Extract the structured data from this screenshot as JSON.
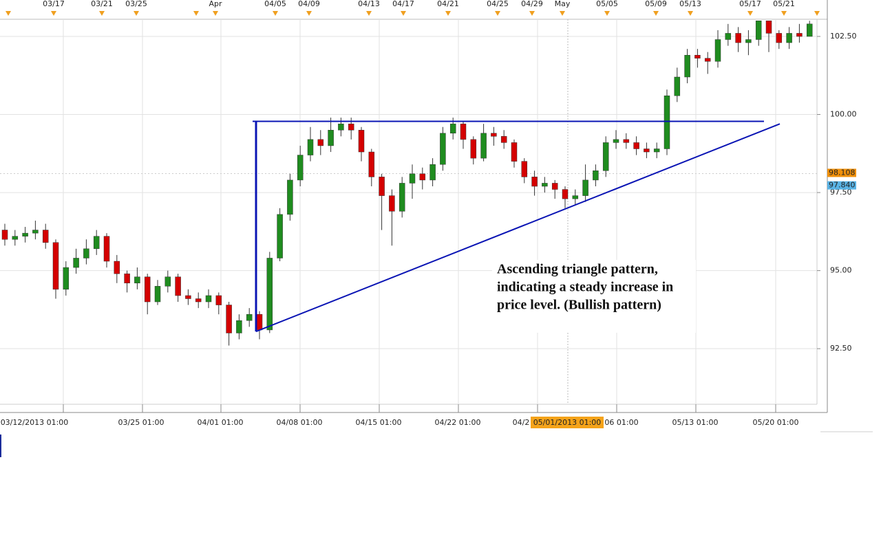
{
  "chart_data": {
    "type": "candlestick",
    "open": [
      96.3,
      96.0,
      96.1,
      96.2,
      96.3,
      95.9,
      94.4,
      95.1,
      95.4,
      95.7,
      96.1,
      95.3,
      94.9,
      94.6,
      94.8,
      94.0,
      94.5,
      94.8,
      94.2,
      94.1,
      94.0,
      94.2,
      93.9,
      93.0,
      93.4,
      93.6,
      93.1,
      95.4,
      96.8,
      97.9,
      98.7,
      99.2,
      99.0,
      99.5,
      99.7,
      99.5,
      98.8,
      98.0,
      97.4,
      96.9,
      97.8,
      98.1,
      97.9,
      98.4,
      99.4,
      99.7,
      99.2,
      98.6,
      99.4,
      99.3,
      99.1,
      98.5,
      98.0,
      97.7,
      97.8,
      97.6,
      97.3,
      97.4,
      97.9,
      98.2,
      99.1,
      99.2,
      99.1,
      98.9,
      98.8,
      98.9,
      100.6,
      101.2,
      101.9,
      101.8,
      101.7,
      102.4,
      102.6,
      102.3,
      102.4,
      103.0,
      102.6,
      102.3,
      102.6,
      102.5
    ],
    "high": [
      96.5,
      96.3,
      96.4,
      96.6,
      96.5,
      96.0,
      95.3,
      95.7,
      96.0,
      96.3,
      96.2,
      95.5,
      95.0,
      95.1,
      94.9,
      94.7,
      95.0,
      94.9,
      94.4,
      94.3,
      94.4,
      94.3,
      94.0,
      93.6,
      93.8,
      93.7,
      95.6,
      97.0,
      98.1,
      99.0,
      99.6,
      99.5,
      99.9,
      99.9,
      99.9,
      99.6,
      98.9,
      98.1,
      97.6,
      98.0,
      98.4,
      98.3,
      98.6,
      99.6,
      99.9,
      99.8,
      99.3,
      99.7,
      99.6,
      99.5,
      99.2,
      98.6,
      98.2,
      98.0,
      97.9,
      97.7,
      97.6,
      98.4,
      98.4,
      99.3,
      99.5,
      99.4,
      99.3,
      99.1,
      99.1,
      100.8,
      101.5,
      102.1,
      102.1,
      102.0,
      102.7,
      102.9,
      102.8,
      102.7,
      103.0,
      103.0,
      102.7,
      102.8,
      102.9,
      103.0
    ],
    "low": [
      95.8,
      95.8,
      95.9,
      96.0,
      95.7,
      94.1,
      94.2,
      94.9,
      95.2,
      95.5,
      95.1,
      94.6,
      94.3,
      94.4,
      93.6,
      93.9,
      94.3,
      94.0,
      93.9,
      93.8,
      93.8,
      93.6,
      92.6,
      92.8,
      93.2,
      92.8,
      93.0,
      95.3,
      96.6,
      97.7,
      98.5,
      98.7,
      98.8,
      99.3,
      99.2,
      98.5,
      97.7,
      96.3,
      95.8,
      96.7,
      97.3,
      97.6,
      97.7,
      98.2,
      99.2,
      98.9,
      98.4,
      98.5,
      99.0,
      98.9,
      98.3,
      97.8,
      97.4,
      97.5,
      97.3,
      97.0,
      97.1,
      97.2,
      97.7,
      98.0,
      98.9,
      98.9,
      98.7,
      98.6,
      98.6,
      98.7,
      100.4,
      101.0,
      101.5,
      101.3,
      101.5,
      102.2,
      102.0,
      101.9,
      102.2,
      102.0,
      102.1,
      102.1,
      102.3,
      102.5
    ],
    "close": [
      96.0,
      96.1,
      96.2,
      96.3,
      95.9,
      94.4,
      95.1,
      95.4,
      95.7,
      96.1,
      95.3,
      94.9,
      94.6,
      94.8,
      94.0,
      94.5,
      94.8,
      94.2,
      94.1,
      94.0,
      94.2,
      93.9,
      93.0,
      93.4,
      93.6,
      93.1,
      95.4,
      96.8,
      97.9,
      98.7,
      99.2,
      99.0,
      99.5,
      99.7,
      99.5,
      98.8,
      98.0,
      97.4,
      96.9,
      97.8,
      98.1,
      97.9,
      98.4,
      99.4,
      99.7,
      99.2,
      98.6,
      99.4,
      99.3,
      99.1,
      98.5,
      98.0,
      97.7,
      97.8,
      97.6,
      97.3,
      97.4,
      97.9,
      98.2,
      99.1,
      99.2,
      99.1,
      98.9,
      98.8,
      98.9,
      100.6,
      101.2,
      101.9,
      101.8,
      101.7,
      102.4,
      102.6,
      102.3,
      102.4,
      103.0,
      102.6,
      102.3,
      102.6,
      102.5,
      102.9
    ],
    "up_color": "#1f8c1f",
    "down_color": "#d40000",
    "ylim": [
      90.72,
      103.05
    ],
    "yticks": [
      {
        "value": 92.5,
        "label": "92.50"
      },
      {
        "value": 95,
        "label": "95.00"
      },
      {
        "value": 97.5,
        "label": "97.50"
      },
      {
        "value": 100,
        "label": "100.00"
      },
      {
        "value": 102.5,
        "label": "102.50"
      }
    ],
    "grid": true,
    "x_axis_labels": [
      "03/12/2013 01:00",
      "03/25 01:00",
      "04/01 01:00",
      "04/08 01:00",
      "04/15 01:00",
      "04/22 01:00",
      "04/2",
      "06 01:00",
      "05/13 01:00",
      "05/20 01:00"
    ],
    "crosshair_label": "05/01/2013 01:00",
    "date_markers": [
      "03/17",
      "03/21",
      "03/25",
      "Apr",
      "04/05",
      "04/09",
      "04/13",
      "04/17",
      "04/21",
      "04/25",
      "04/29",
      "May",
      "05/05",
      "05/09",
      "05/13",
      "05/17",
      "05/21"
    ],
    "price_markers": [
      {
        "value": 98.108,
        "color": "#f0900a"
      },
      {
        "value": {
          "value": 97.84,
          "label": "97.840"
        },
        "color": "#5ab4e6"
      }
    ],
    "pattern_lines": {
      "resistance": 99.78,
      "support": [
        93.05,
        99.7
      ],
      "color": "#0a14b4"
    },
    "annotation": [
      "Ascending triangle pattern,",
      "indicating a steady increase in",
      "price level. (Bullish pattern)"
    ]
  }
}
